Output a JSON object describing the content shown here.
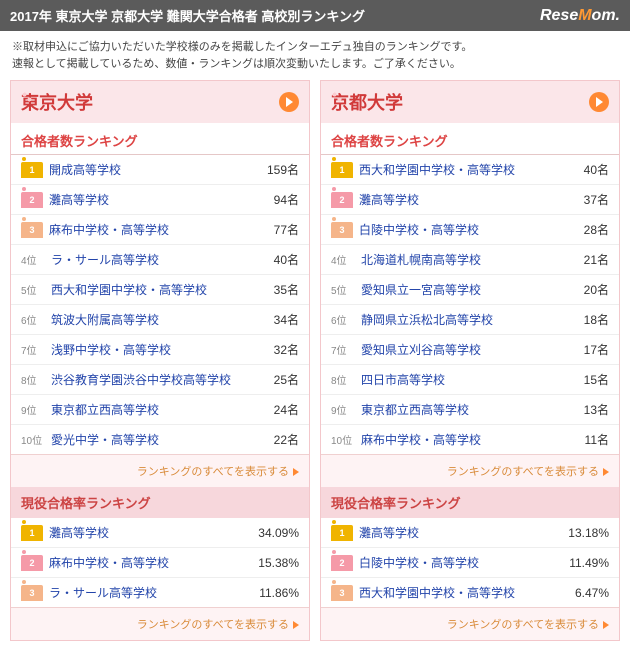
{
  "header": {
    "title": "2017年 東京大学 京都大学 難関大学合格者 高校別ランキング",
    "logo_pre": "Rese",
    "logo_o": "M",
    "logo_post": "om"
  },
  "note_line1": "※取材申込にご協力いただいた学校様のみを掲載したインターエデュ独自のランキングです。",
  "note_line2": "速報として掲載しているため、数値・ランキングは順次変動いたします。ご了承ください。",
  "more_label": "ランキングのすべてを表示する",
  "count_section": "合格者数ランキング",
  "rate_section": "現役合格率ランキング",
  "panels": [
    {
      "uni": "東京大学",
      "counts": [
        {
          "rank": 1,
          "crown": "c1",
          "school": "開成高等学校",
          "val": "159名"
        },
        {
          "rank": 2,
          "crown": "c2",
          "school": "灘高等学校",
          "val": "94名"
        },
        {
          "rank": 3,
          "crown": "c3",
          "school": "麻布中学校・高等学校",
          "val": "77名"
        },
        {
          "rank": 4,
          "school": "ラ・サール高等学校",
          "val": "40名"
        },
        {
          "rank": 5,
          "school": "西大和学園中学校・高等学校",
          "val": "35名"
        },
        {
          "rank": 6,
          "school": "筑波大附属高等学校",
          "val": "34名"
        },
        {
          "rank": 7,
          "school": "浅野中学校・高等学校",
          "val": "32名"
        },
        {
          "rank": 8,
          "school": "渋谷教育学園渋谷中学校高等学校",
          "val": "25名"
        },
        {
          "rank": 9,
          "school": "東京都立西高等学校",
          "val": "24名"
        },
        {
          "rank": 10,
          "school": "愛光中学・高等学校",
          "val": "22名"
        }
      ],
      "rates": [
        {
          "rank": 1,
          "crown": "c1",
          "school": "灘高等学校",
          "val": "34.09%"
        },
        {
          "rank": 2,
          "crown": "c2",
          "school": "麻布中学校・高等学校",
          "val": "15.38%"
        },
        {
          "rank": 3,
          "crown": "c3",
          "school": "ラ・サール高等学校",
          "val": "11.86%"
        }
      ]
    },
    {
      "uni": "京都大学",
      "counts": [
        {
          "rank": 1,
          "crown": "c1",
          "school": "西大和学園中学校・高等学校",
          "val": "40名"
        },
        {
          "rank": 2,
          "crown": "c2",
          "school": "灘高等学校",
          "val": "37名"
        },
        {
          "rank": 3,
          "crown": "c3",
          "school": "白陵中学校・高等学校",
          "val": "28名"
        },
        {
          "rank": 4,
          "school": "北海道札幌南高等学校",
          "val": "21名"
        },
        {
          "rank": 5,
          "school": "愛知県立一宮高等学校",
          "val": "20名"
        },
        {
          "rank": 6,
          "school": "静岡県立浜松北高等学校",
          "val": "18名"
        },
        {
          "rank": 7,
          "school": "愛知県立刈谷高等学校",
          "val": "17名"
        },
        {
          "rank": 8,
          "school": "四日市高等学校",
          "val": "15名"
        },
        {
          "rank": 9,
          "school": "東京都立西高等学校",
          "val": "13名"
        },
        {
          "rank": 10,
          "school": "麻布中学校・高等学校",
          "val": "11名"
        }
      ],
      "rates": [
        {
          "rank": 1,
          "crown": "c1",
          "school": "灘高等学校",
          "val": "13.18%"
        },
        {
          "rank": 2,
          "crown": "c2",
          "school": "白陵中学校・高等学校",
          "val": "11.49%"
        },
        {
          "rank": 3,
          "crown": "c3",
          "school": "西大和学園中学校・高等学校",
          "val": "6.47%"
        }
      ]
    }
  ]
}
